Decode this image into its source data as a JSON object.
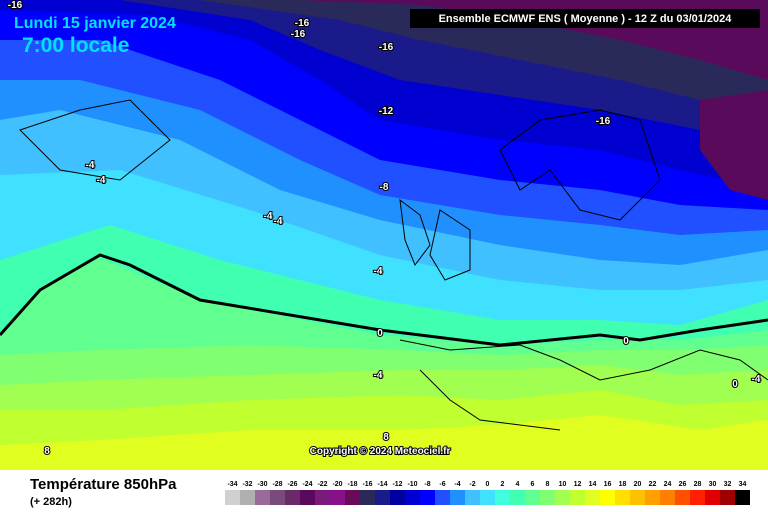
{
  "header": {
    "date": "Lundi 15 janvier 2024",
    "time": "7:00 locale",
    "model": "Ensemble ECMWF ENS  ( Moyenne )  -  12 Z du 03/01/2024"
  },
  "contour_labels": [
    -16,
    -16,
    -16,
    -16,
    -12,
    -16,
    -8,
    -4,
    -4,
    -4,
    -4,
    -4,
    0,
    0,
    0,
    -4,
    -4,
    8,
    8
  ],
  "copyright": "Copyright © 2024 Meteociel.fr",
  "footer": {
    "variable": "Température 850hPa",
    "lead": "(+ 282h)"
  },
  "scale": {
    "values": [
      -34,
      -32,
      -30,
      -28,
      -26,
      -24,
      -22,
      -20,
      -18,
      -16,
      -14,
      -12,
      -10,
      -8,
      -6,
      -4,
      -2,
      0,
      2,
      4,
      6,
      8,
      10,
      12,
      14,
      16,
      18,
      20,
      22,
      24,
      26,
      28,
      30,
      32,
      34
    ],
    "colors": [
      "#d0d0d0",
      "#b0b0b0",
      "#9a6a9a",
      "#7a4a7a",
      "#6a2a6a",
      "#5a0a5a",
      "#7a1a7a",
      "#8a108a",
      "#6a0a5a",
      "#2a2a5a",
      "#1a1a8a",
      "#0000a0",
      "#0000d0",
      "#0000ff",
      "#2050ff",
      "#2090ff",
      "#40c0ff",
      "#40e0ff",
      "#40ffe0",
      "#40ffb0",
      "#60ff90",
      "#80ff70",
      "#a0ff50",
      "#c0ff30",
      "#e0ff20",
      "#ffff00",
      "#ffe000",
      "#ffc000",
      "#ffa000",
      "#ff8000",
      "#ff5000",
      "#ff2000",
      "#e00000",
      "#a00000",
      "#000000"
    ]
  }
}
